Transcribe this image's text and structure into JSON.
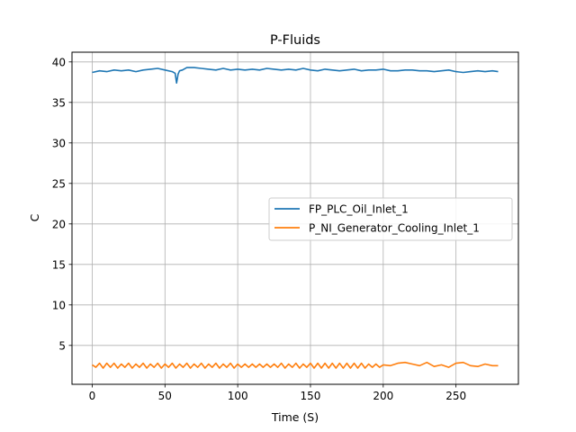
{
  "chart_data": {
    "type": "line",
    "title": "P-Fluids",
    "xlabel": "Time (S)",
    "ylabel": "C",
    "xlim": [
      -13.9,
      292.9
    ],
    "ylim": [
      0.2,
      41.2
    ],
    "xticks": [
      0,
      50,
      100,
      150,
      200,
      250
    ],
    "yticks": [
      5,
      10,
      15,
      20,
      25,
      30,
      35,
      40
    ],
    "grid": true,
    "legend_position": "center-right",
    "series": [
      {
        "name": "FP_PLC_Oil_Inlet_1",
        "color": "#1f77b4",
        "x": [
          0,
          5,
          10,
          15,
          20,
          25,
          30,
          35,
          40,
          45,
          50,
          55,
          57,
          58,
          59,
          60,
          62,
          65,
          70,
          75,
          80,
          85,
          90,
          95,
          100,
          105,
          110,
          115,
          120,
          125,
          130,
          135,
          140,
          145,
          150,
          155,
          160,
          165,
          170,
          175,
          180,
          185,
          190,
          195,
          200,
          205,
          210,
          215,
          220,
          225,
          230,
          235,
          240,
          245,
          250,
          255,
          260,
          265,
          270,
          275,
          279
        ],
        "y": [
          38.7,
          38.9,
          38.8,
          39.0,
          38.9,
          39.0,
          38.8,
          39.0,
          39.1,
          39.2,
          39.0,
          38.8,
          38.6,
          37.4,
          38.5,
          38.9,
          39.0,
          39.3,
          39.3,
          39.2,
          39.1,
          39.0,
          39.2,
          39.0,
          39.1,
          39.0,
          39.1,
          39.0,
          39.2,
          39.1,
          39.0,
          39.1,
          39.0,
          39.2,
          39.0,
          38.9,
          39.1,
          39.0,
          38.9,
          39.0,
          39.1,
          38.9,
          39.0,
          39.0,
          39.1,
          38.9,
          38.9,
          39.0,
          39.0,
          38.9,
          38.9,
          38.8,
          38.9,
          39.0,
          38.8,
          38.7,
          38.8,
          38.9,
          38.8,
          38.9,
          38.8
        ]
      },
      {
        "name": "P_NI_Generator_Cooling_Inlet_1",
        "color": "#ff7f0e",
        "x": [
          0,
          2.5,
          5,
          7.5,
          10,
          12.5,
          15,
          17.5,
          20,
          22.5,
          25,
          27.5,
          30,
          32.5,
          35,
          37.5,
          40,
          42.5,
          45,
          47.5,
          50,
          52.5,
          55,
          57.5,
          60,
          62.5,
          65,
          67.5,
          70,
          72.5,
          75,
          77.5,
          80,
          82.5,
          85,
          87.5,
          90,
          92.5,
          95,
          97.5,
          100,
          102.5,
          105,
          107.5,
          110,
          112.5,
          115,
          117.5,
          120,
          122.5,
          125,
          127.5,
          130,
          132.5,
          135,
          137.5,
          140,
          142.5,
          145,
          147.5,
          150,
          152.5,
          155,
          157.5,
          160,
          162.5,
          165,
          167.5,
          170,
          172.5,
          175,
          177.5,
          180,
          182.5,
          185,
          187.5,
          190,
          192.5,
          195,
          197.5,
          200,
          205,
          210,
          215,
          220,
          225,
          230,
          235,
          240,
          245,
          250,
          255,
          260,
          265,
          270,
          275,
          279
        ],
        "y": [
          2.6,
          2.3,
          2.8,
          2.2,
          2.8,
          2.3,
          2.8,
          2.2,
          2.7,
          2.3,
          2.8,
          2.2,
          2.7,
          2.3,
          2.8,
          2.2,
          2.7,
          2.3,
          2.8,
          2.2,
          2.7,
          2.3,
          2.8,
          2.2,
          2.7,
          2.3,
          2.8,
          2.2,
          2.7,
          2.3,
          2.8,
          2.2,
          2.7,
          2.3,
          2.8,
          2.2,
          2.7,
          2.3,
          2.8,
          2.2,
          2.7,
          2.3,
          2.7,
          2.3,
          2.7,
          2.3,
          2.7,
          2.3,
          2.7,
          2.3,
          2.7,
          2.3,
          2.8,
          2.2,
          2.7,
          2.3,
          2.8,
          2.2,
          2.7,
          2.3,
          2.8,
          2.2,
          2.8,
          2.2,
          2.8,
          2.2,
          2.8,
          2.2,
          2.8,
          2.2,
          2.8,
          2.2,
          2.8,
          2.2,
          2.8,
          2.2,
          2.7,
          2.3,
          2.7,
          2.3,
          2.6,
          2.5,
          2.8,
          2.9,
          2.7,
          2.5,
          2.9,
          2.4,
          2.6,
          2.3,
          2.8,
          2.9,
          2.5,
          2.4,
          2.7,
          2.5,
          2.5
        ]
      }
    ]
  }
}
